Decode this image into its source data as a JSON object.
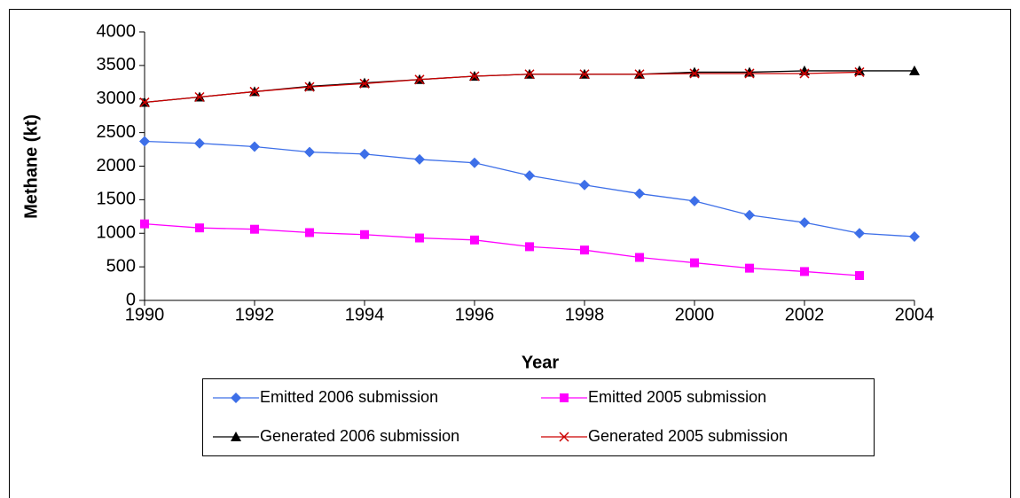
{
  "chart_data": {
    "type": "line",
    "x_label": "Year",
    "y_label": "Methane (kt)",
    "x": [
      1990,
      1991,
      1992,
      1993,
      1994,
      1995,
      1996,
      1997,
      1998,
      1999,
      2000,
      2001,
      2002,
      2003,
      2004
    ],
    "xlim": [
      1990,
      2004
    ],
    "xticks": [
      1990,
      1992,
      1994,
      1996,
      1998,
      2000,
      2002,
      2004
    ],
    "ylim": [
      0,
      4000
    ],
    "yticks": [
      0,
      500,
      1000,
      1500,
      2000,
      2500,
      3000,
      3500,
      4000
    ],
    "grid": false,
    "legend": "bottom",
    "series": [
      {
        "name": "Emitted 2006 submission",
        "color": "#3d6fe8",
        "marker": "diamond",
        "values": [
          2370,
          2340,
          2290,
          2210,
          2180,
          2100,
          2050,
          1860,
          1720,
          1590,
          1480,
          1270,
          1160,
          1000,
          950
        ]
      },
      {
        "name": "Emitted 2005 submission",
        "color": "#ff00ff",
        "marker": "square",
        "values": [
          1140,
          1080,
          1060,
          1010,
          980,
          930,
          900,
          800,
          750,
          640,
          560,
          480,
          430,
          370,
          null
        ]
      },
      {
        "name": "Generated 2006 submission",
        "color": "#000000",
        "marker": "triangle",
        "values": [
          2950,
          3030,
          3110,
          3190,
          3240,
          3290,
          3340,
          3370,
          3370,
          3370,
          3400,
          3400,
          3420,
          3420,
          3420
        ]
      },
      {
        "name": "Generated 2005 submission",
        "color": "#cc0000",
        "marker": "x",
        "values": [
          2950,
          3030,
          3110,
          3180,
          3230,
          3290,
          3340,
          3370,
          3370,
          3370,
          3380,
          3380,
          3380,
          3400,
          null
        ]
      }
    ]
  }
}
